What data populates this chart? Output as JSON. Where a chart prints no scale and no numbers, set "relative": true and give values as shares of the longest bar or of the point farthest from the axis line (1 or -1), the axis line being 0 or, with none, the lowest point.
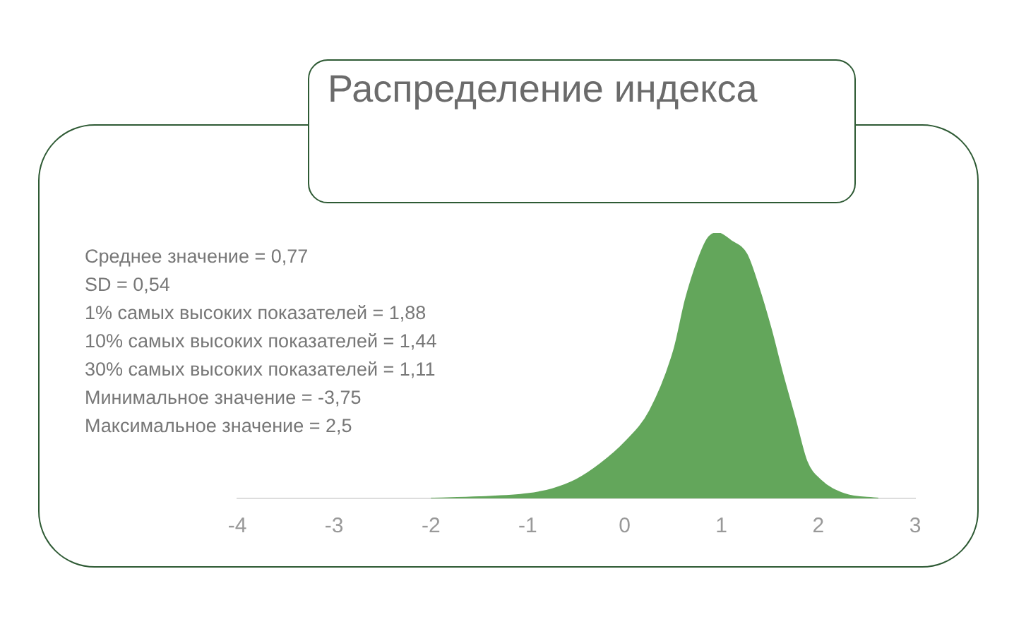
{
  "chart_data": {
    "type": "area",
    "title": "Распределение индекса",
    "relative": true,
    "x": [
      -2.0,
      -1.5,
      -1.0,
      -0.75,
      -0.5,
      -0.25,
      0.0,
      0.26,
      0.51,
      0.63,
      0.76,
      0.86,
      0.96,
      1.1,
      1.26,
      1.38,
      1.51,
      1.63,
      1.76,
      1.88,
      2.02,
      2.27,
      2.62
    ],
    "series": [
      {
        "color": "#63a65b",
        "values": [
          0,
          0.005,
          0.017,
          0.035,
          0.07,
          0.13,
          0.21,
          0.33,
          0.56,
          0.75,
          0.9,
          0.98,
          1,
          0.97,
          0.92,
          0.8,
          0.64,
          0.47,
          0.3,
          0.14,
          0.07,
          0.017,
          0
        ]
      }
    ],
    "xlim": [
      -4,
      3
    ],
    "xticks": [
      -4,
      -3,
      -2,
      -1,
      0,
      1,
      2,
      3
    ],
    "annotations": [
      "Среднее значение = 0,77",
      "SD = 0,54",
      "1% самых высоких показателей = 1,88",
      "10% самых высоких показателей = 1,44",
      "30% самых высоких показателей = 1,11",
      "Минимальное значение = -3,75",
      "Максимальное значение = 2,5"
    ]
  }
}
